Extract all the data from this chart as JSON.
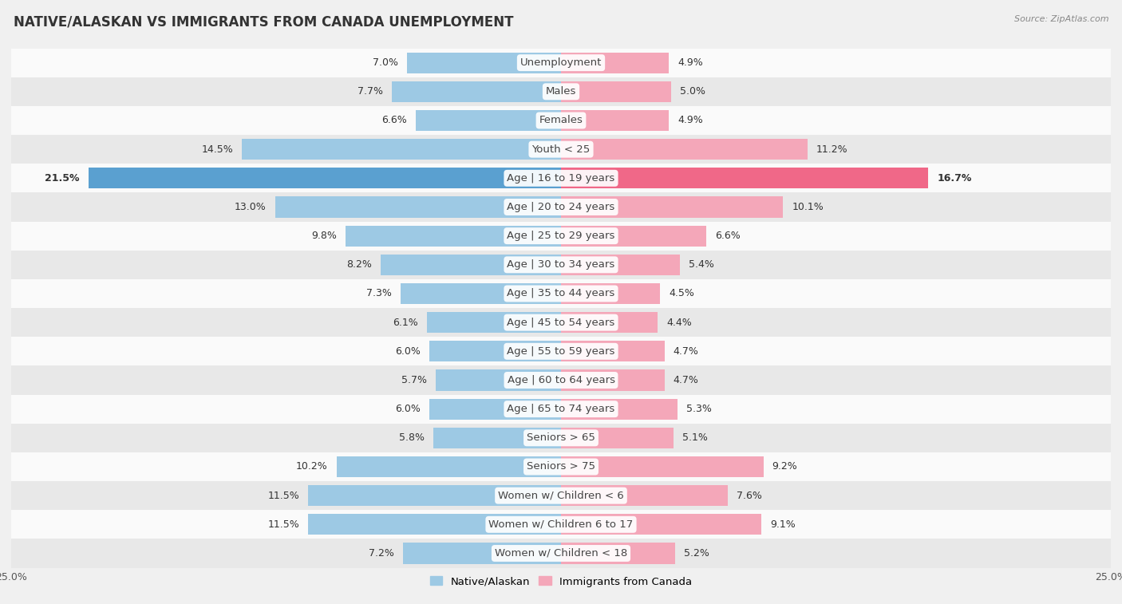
{
  "title": "NATIVE/ALASKAN VS IMMIGRANTS FROM CANADA UNEMPLOYMENT",
  "source": "Source: ZipAtlas.com",
  "categories": [
    "Unemployment",
    "Males",
    "Females",
    "Youth < 25",
    "Age | 16 to 19 years",
    "Age | 20 to 24 years",
    "Age | 25 to 29 years",
    "Age | 30 to 34 years",
    "Age | 35 to 44 years",
    "Age | 45 to 54 years",
    "Age | 55 to 59 years",
    "Age | 60 to 64 years",
    "Age | 65 to 74 years",
    "Seniors > 65",
    "Seniors > 75",
    "Women w/ Children < 6",
    "Women w/ Children 6 to 17",
    "Women w/ Children < 18"
  ],
  "native_values": [
    7.0,
    7.7,
    6.6,
    14.5,
    21.5,
    13.0,
    9.8,
    8.2,
    7.3,
    6.1,
    6.0,
    5.7,
    6.0,
    5.8,
    10.2,
    11.5,
    11.5,
    7.2
  ],
  "immigrant_values": [
    4.9,
    5.0,
    4.9,
    11.2,
    16.7,
    10.1,
    6.6,
    5.4,
    4.5,
    4.4,
    4.7,
    4.7,
    5.3,
    5.1,
    9.2,
    7.6,
    9.1,
    5.2
  ],
  "native_color": "#9dc9e4",
  "immigrant_color": "#f4a7b9",
  "native_highlight_color": "#5aa0d0",
  "immigrant_highlight_color": "#f06888",
  "highlight_row": 4,
  "bg_color": "#f0f0f0",
  "row_bg_even": "#fafafa",
  "row_bg_odd": "#e8e8e8",
  "axis_max": 25.0,
  "legend_native": "Native/Alaskan",
  "legend_immigrant": "Immigrants from Canada",
  "label_fontsize": 9.5,
  "title_fontsize": 12,
  "bar_height": 0.72
}
